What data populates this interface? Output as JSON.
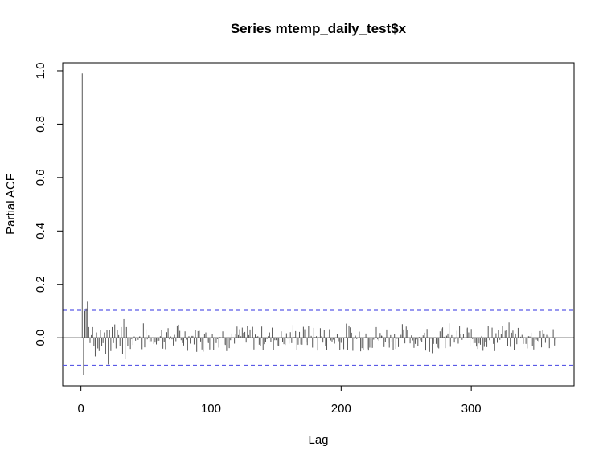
{
  "chart_data": {
    "type": "bar",
    "title": "Series  mtemp_daily_test$x",
    "xlabel": "Lag",
    "ylabel": "Partial ACF",
    "xlim": [
      -14,
      379
    ],
    "ylim": [
      -0.18,
      1.03
    ],
    "x_ticks": [
      0,
      100,
      200,
      300
    ],
    "x_tick_labels": [
      "0",
      "100",
      "200",
      "300"
    ],
    "y_ticks": [
      0.0,
      0.2,
      0.4,
      0.6,
      0.8,
      1.0
    ],
    "y_tick_labels": [
      "0.0",
      "0.2",
      "0.4",
      "0.6",
      "0.8",
      "1.0"
    ],
    "ci_bound": 0.103,
    "ci_color": "#5a5ae6",
    "bar_color": "#555555",
    "grid": false,
    "n_lags": 365,
    "lead_values": [
      0.99,
      -0.14,
      0.1,
      0.11,
      0.135,
      0.04,
      -0.02,
      0.01,
      0.04,
      -0.03,
      -0.07,
      0.02,
      -0.04,
      -0.05,
      0.03,
      -0.03,
      -0.02,
      0.02,
      -0.06,
      0.03,
      -0.1,
      0.03,
      -0.05,
      0.04,
      -0.02,
      0.05,
      -0.04,
      0.03,
      0.01,
      -0.03,
      0.04,
      -0.06,
      0.07,
      -0.08,
      0.04,
      -0.03
    ],
    "tail_seed": 7,
    "tail_amplitude": 0.045
  }
}
